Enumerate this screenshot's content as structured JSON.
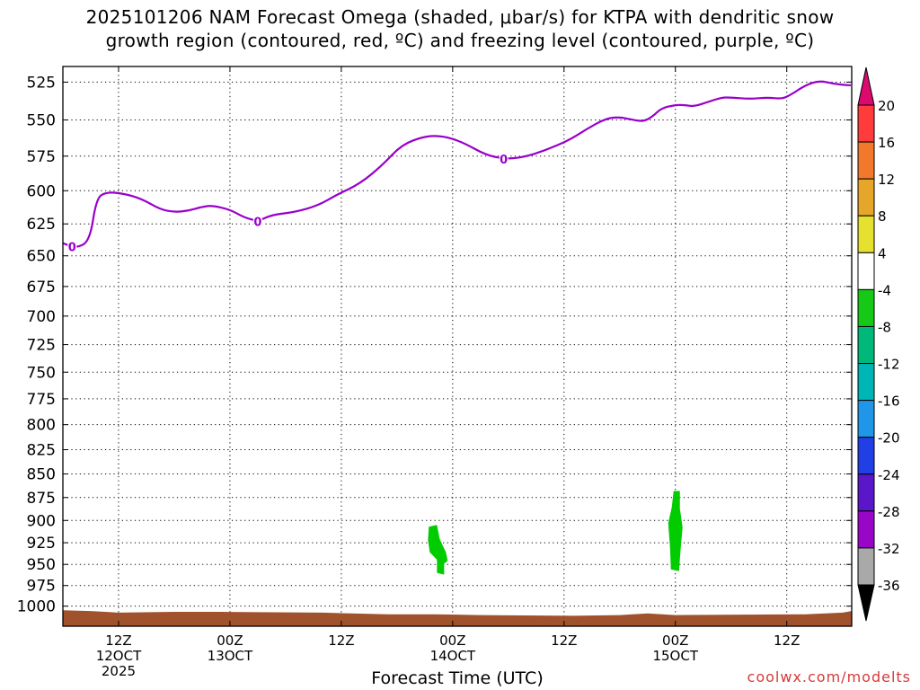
{
  "title_line1": "2025101206 NAM Forecast Omega (shaded, μbar/s) for KTPA with dendritic snow",
  "title_line2": "growth region (contoured, red, ºC) and freezing level (contoured, purple, ºC)",
  "credit": "coolwx.com/modelts",
  "chart_data": {
    "type": "area",
    "title": "2025101206 NAM Forecast Omega (shaded, μbar/s) for KTPA with dendritic snow growth region (contoured, red, ºC) and freezing level (contoured, purple, ºC)",
    "xlabel": "Forecast Time (UTC)",
    "ylabel": "",
    "y_scale": "log-pressure, inverted",
    "ylim": [
      1025,
      515
    ],
    "xlim": [
      "2025-10-12 06Z",
      "2025-10-15 18Z"
    ],
    "yticks": [
      525,
      550,
      575,
      600,
      625,
      650,
      675,
      700,
      725,
      750,
      775,
      800,
      825,
      850,
      875,
      900,
      925,
      950,
      975,
      1000
    ],
    "xticks": [
      {
        "t": 6,
        "line1": "12Z",
        "line2": "12OCT",
        "line3": "2025"
      },
      {
        "t": 18,
        "line1": "00Z",
        "line2": "13OCT",
        "line3": ""
      },
      {
        "t": 30,
        "line1": "12Z",
        "line2": "",
        "line3": ""
      },
      {
        "t": 42,
        "line1": "00Z",
        "line2": "14OCT",
        "line3": ""
      },
      {
        "t": 54,
        "line1": "12Z",
        "line2": "",
        "line3": ""
      },
      {
        "t": 66,
        "line1": "00Z",
        "line2": "15OCT",
        "line3": ""
      },
      {
        "t": 78,
        "line1": "12Z",
        "line2": "",
        "line3": ""
      }
    ],
    "grid": true,
    "freezing_level_label": "0",
    "freezing_level_color": "#9900cc",
    "freezing_level": [
      [
        0.0,
        640
      ],
      [
        1.5,
        644
      ],
      [
        2.9,
        638
      ],
      [
        3.6,
        606
      ],
      [
        4.6,
        601
      ],
      [
        6.5,
        602
      ],
      [
        8.5,
        606
      ],
      [
        10.5,
        614
      ],
      [
        12.0,
        616
      ],
      [
        13.5,
        615
      ],
      [
        15.0,
        612
      ],
      [
        16.0,
        611
      ],
      [
        18.0,
        614
      ],
      [
        19.5,
        620
      ],
      [
        21.0,
        623
      ],
      [
        22.5,
        618
      ],
      [
        25.0,
        616
      ],
      [
        27.5,
        611
      ],
      [
        29.5,
        603
      ],
      [
        32.0,
        595
      ],
      [
        34.5,
        581
      ],
      [
        36.5,
        567
      ],
      [
        39.0,
        561
      ],
      [
        41.0,
        561
      ],
      [
        43.0,
        565
      ],
      [
        45.5,
        574
      ],
      [
        47.5,
        577
      ],
      [
        49.5,
        576
      ],
      [
        52.0,
        571
      ],
      [
        54.5,
        564
      ],
      [
        56.5,
        556
      ],
      [
        58.5,
        549
      ],
      [
        60.0,
        548
      ],
      [
        61.5,
        550
      ],
      [
        62.5,
        551
      ],
      [
        63.5,
        548
      ],
      [
        64.5,
        542
      ],
      [
        66.0,
        540
      ],
      [
        67.0,
        540
      ],
      [
        68.0,
        541
      ],
      [
        69.5,
        538
      ],
      [
        71.0,
        535
      ],
      [
        72.0,
        535
      ],
      [
        74.0,
        536
      ],
      [
        76.0,
        535
      ],
      [
        77.5,
        536
      ],
      [
        78.5,
        533
      ],
      [
        80.0,
        527
      ],
      [
        81.5,
        524
      ],
      [
        83.0,
        526
      ],
      [
        84.5,
        527
      ],
      [
        84.9,
        527
      ]
    ],
    "shaded_regions": [
      {
        "label": "-8 to -4",
        "color": "#00cc00",
        "t_center": 40.5,
        "p_top": 905,
        "p_bottom": 962
      },
      {
        "label": "-8 to -4",
        "color": "#00cc00",
        "t_center": 66.0,
        "p_top": 868,
        "p_bottom": 958
      }
    ],
    "terrain_color": "#a0522d",
    "surface_pressure": [
      [
        0,
        1005
      ],
      [
        3,
        1006
      ],
      [
        6,
        1008
      ],
      [
        12,
        1007
      ],
      [
        17,
        1007
      ],
      [
        28,
        1008
      ],
      [
        35,
        1010
      ],
      [
        40,
        1010
      ],
      [
        45,
        1011
      ],
      [
        55,
        1012
      ],
      [
        60,
        1011
      ],
      [
        63,
        1009
      ],
      [
        66,
        1011
      ],
      [
        80,
        1010
      ],
      [
        84,
        1008
      ],
      [
        85,
        1006
      ]
    ],
    "colorbar": {
      "ticks": [
        "20",
        "16",
        "12",
        "8",
        "4",
        "-4",
        "-8",
        "-12",
        "-16",
        "-20",
        "-24",
        "-28",
        "-32",
        "-36"
      ],
      "colors": [
        "#dc0a6e",
        "#ff3b3b",
        "#f2782c",
        "#e6a62a",
        "#e6e02e",
        "#ffffff",
        "#16c916",
        "#00b87a",
        "#00b5b5",
        "#1f96e8",
        "#2040e6",
        "#5a16c8",
        "#9a06c8",
        "#a9a9a9",
        "#000000"
      ]
    }
  }
}
